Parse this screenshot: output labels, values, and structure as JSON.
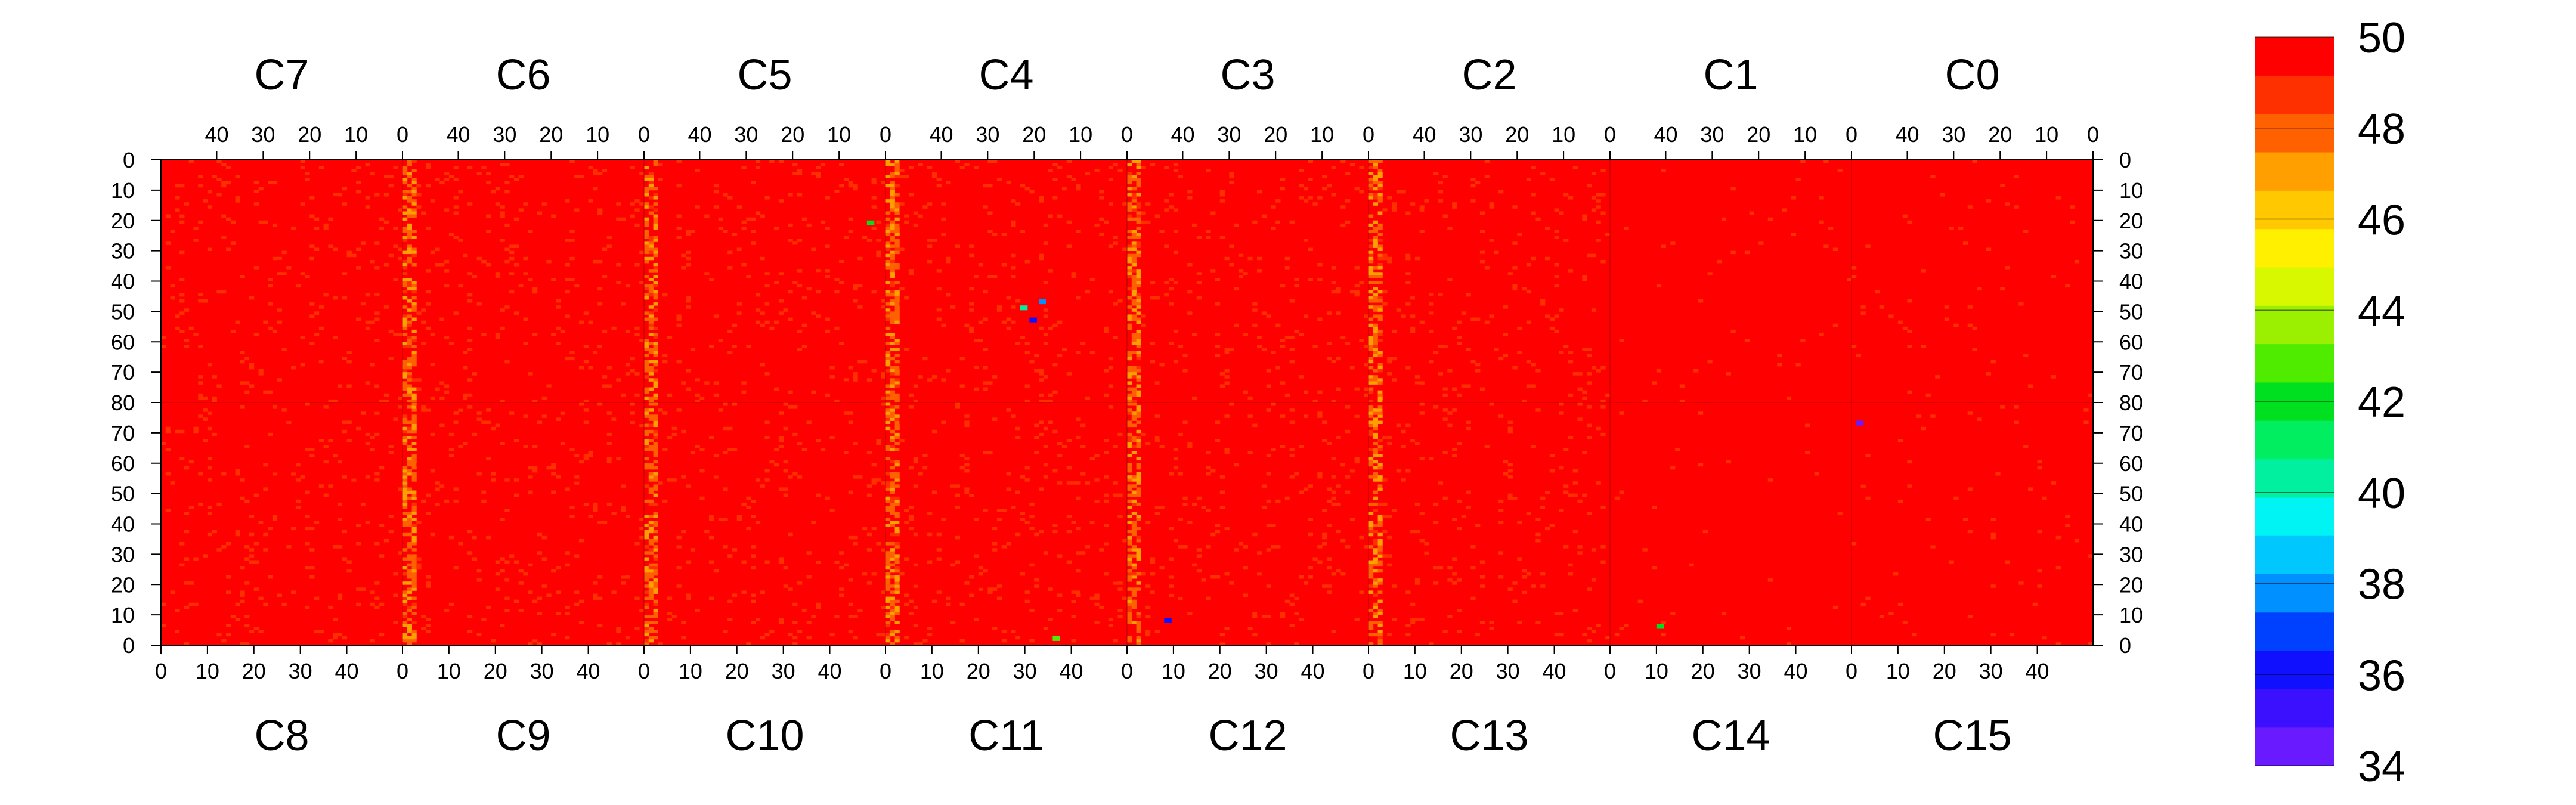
{
  "chart_data": {
    "type": "heatmap",
    "colormap": [
      "#6a1aff",
      "#3a10ff",
      "#1010ff",
      "#0040ff",
      "#0090ff",
      "#00c8ff",
      "#00f4f4",
      "#00f0a0",
      "#00ee60",
      "#00e020",
      "#50ec00",
      "#9af000",
      "#d8f800",
      "#fff000",
      "#ffc800",
      "#ffa000",
      "#ff6000",
      "#ff3000",
      "#ff0000"
    ],
    "zlim": [
      34,
      50
    ],
    "colorbar_ticks": [
      "34",
      "36",
      "38",
      "40",
      "42",
      "44",
      "46",
      "48",
      "50"
    ],
    "top_chips": [
      "C7",
      "C6",
      "C5",
      "C4",
      "C3",
      "C2",
      "C1",
      "C0"
    ],
    "bottom_chips": [
      "C8",
      "C9",
      "C10",
      "C11",
      "C12",
      "C13",
      "C14",
      "C15"
    ],
    "top_col_ticks": [
      "40",
      "30",
      "20",
      "10",
      "0"
    ],
    "bottom_col_ticks": [
      "0",
      "10",
      "20",
      "30",
      "40"
    ],
    "row_ticks_upper": [
      "0",
      "10",
      "20",
      "30",
      "40",
      "50",
      "60",
      "70",
      "80"
    ],
    "row_ticks_lower": [
      "70",
      "60",
      "50",
      "40",
      "30",
      "20",
      "10",
      "0"
    ],
    "columns_per_chip": 52,
    "rows_per_half": 80,
    "typical_value": 50,
    "hot_edge_columns_value": 48.5,
    "outliers": [
      {
        "chip": "C5",
        "row": 20,
        "col": 3,
        "value": 42
      },
      {
        "chip": "C4",
        "row": 48,
        "col": 22,
        "value": 40
      },
      {
        "chip": "C4",
        "row": 52,
        "col": 20,
        "value": 36
      },
      {
        "chip": "C4",
        "row": 46,
        "col": 18,
        "value": 38
      },
      {
        "chip": "C11",
        "row": 2,
        "col": 36,
        "value": 43
      },
      {
        "chip": "C12",
        "row": 8,
        "col": 8,
        "value": 36
      },
      {
        "chip": "C14",
        "row": 6,
        "col": 10,
        "value": 42
      },
      {
        "chip": "C15",
        "row": 73,
        "col": 1,
        "value": 34
      }
    ]
  }
}
